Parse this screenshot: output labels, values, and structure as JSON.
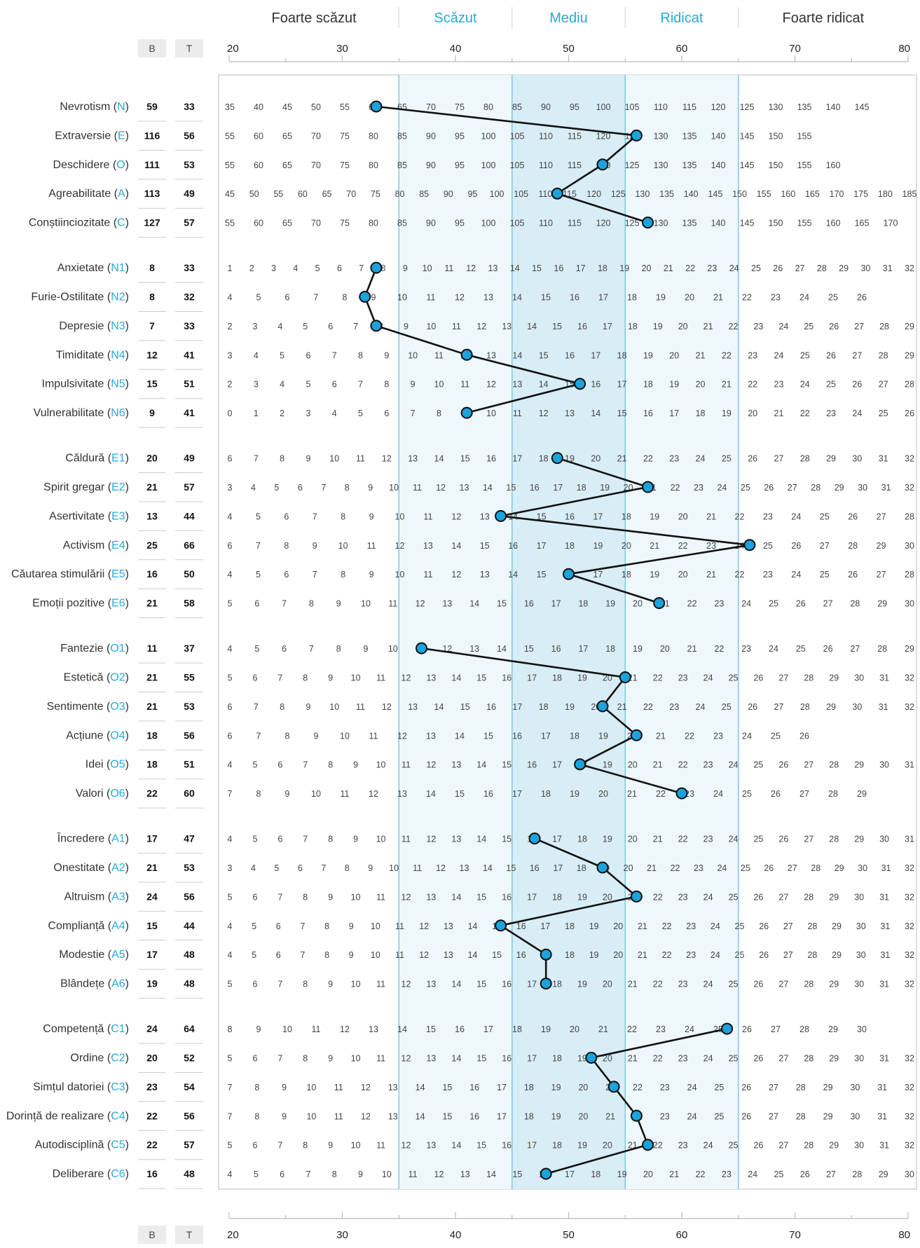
{
  "chart_data": {
    "type": "line",
    "orientation": "horizontal",
    "levels": [
      {
        "label": "Foarte scăzut",
        "range": [
          20,
          35
        ],
        "color": "#333333"
      },
      {
        "label": "Scăzut",
        "range": [
          35,
          45
        ],
        "color": "#29a8d8"
      },
      {
        "label": "Mediu",
        "range": [
          45,
          55
        ],
        "color": "#29a8d8"
      },
      {
        "label": "Ridicat",
        "range": [
          55,
          65
        ],
        "color": "#29a8d8"
      },
      {
        "label": "Foarte ridicat",
        "range": [
          65,
          80
        ],
        "color": "#333333"
      }
    ],
    "x_ticks": [
      20,
      30,
      40,
      50,
      60,
      70,
      80
    ],
    "xlim": [
      20,
      80
    ],
    "col_b_header": "B",
    "col_t_header": "T",
    "accent_color": "#29a8d8",
    "marker_color": "#1aa3dc",
    "groups": [
      [
        {
          "name": "Nevrotism",
          "code": "N",
          "b": 59,
          "t": 33,
          "scale": [
            35,
            145,
            5
          ]
        },
        {
          "name": "Extraversie",
          "code": "E",
          "b": 116,
          "t": 56,
          "scale": [
            55,
            155,
            5
          ]
        },
        {
          "name": "Deschidere",
          "code": "O",
          "b": 111,
          "t": 53,
          "scale": [
            55,
            160,
            5
          ]
        },
        {
          "name": "Agreabilitate",
          "code": "A",
          "b": 113,
          "t": 49,
          "scale": [
            45,
            185,
            5
          ]
        },
        {
          "name": "Conștiinciozitate",
          "code": "C",
          "b": 127,
          "t": 57,
          "scale": [
            55,
            170,
            5
          ]
        }
      ],
      [
        {
          "name": "Anxietate",
          "code": "N1",
          "b": 8,
          "t": 33,
          "scale": [
            1,
            32,
            1
          ]
        },
        {
          "name": "Furie-Ostilitate",
          "code": "N2",
          "b": 8,
          "t": 32,
          "scale": [
            4,
            26,
            1
          ]
        },
        {
          "name": "Depresie",
          "code": "N3",
          "b": 7,
          "t": 33,
          "scale": [
            2,
            29,
            1
          ]
        },
        {
          "name": "Timiditate",
          "code": "N4",
          "b": 12,
          "t": 41,
          "scale": [
            3,
            29,
            1
          ]
        },
        {
          "name": "Impulsivitate",
          "code": "N5",
          "b": 15,
          "t": 51,
          "scale": [
            2,
            28,
            1
          ]
        },
        {
          "name": "Vulnerabilitate",
          "code": "N6",
          "b": 9,
          "t": 41,
          "scale": [
            0,
            26,
            1
          ]
        }
      ],
      [
        {
          "name": "Căldură",
          "code": "E1",
          "b": 20,
          "t": 49,
          "scale": [
            6,
            32,
            1
          ]
        },
        {
          "name": "Spirit gregar",
          "code": "E2",
          "b": 21,
          "t": 57,
          "scale": [
            3,
            32,
            1
          ]
        },
        {
          "name": "Asertivitate",
          "code": "E3",
          "b": 13,
          "t": 44,
          "scale": [
            4,
            28,
            1
          ]
        },
        {
          "name": "Activism",
          "code": "E4",
          "b": 25,
          "t": 66,
          "scale": [
            6,
            30,
            1
          ]
        },
        {
          "name": "Căutarea stimulării",
          "code": "E5",
          "b": 16,
          "t": 50,
          "scale": [
            4,
            28,
            1
          ]
        },
        {
          "name": "Emoții pozitive",
          "code": "E6",
          "b": 21,
          "t": 58,
          "scale": [
            5,
            30,
            1
          ]
        }
      ],
      [
        {
          "name": "Fantezie",
          "code": "O1",
          "b": 11,
          "t": 37,
          "scale": [
            4,
            29,
            1
          ]
        },
        {
          "name": "Estetică",
          "code": "O2",
          "b": 21,
          "t": 55,
          "scale": [
            5,
            32,
            1
          ]
        },
        {
          "name": "Sentimente",
          "code": "O3",
          "b": 21,
          "t": 53,
          "scale": [
            6,
            32,
            1
          ]
        },
        {
          "name": "Acțiune",
          "code": "O4",
          "b": 18,
          "t": 56,
          "scale": [
            6,
            26,
            1
          ]
        },
        {
          "name": "Idei",
          "code": "O5",
          "b": 18,
          "t": 51,
          "scale": [
            4,
            31,
            1
          ]
        },
        {
          "name": "Valori",
          "code": "O6",
          "b": 22,
          "t": 60,
          "scale": [
            7,
            29,
            1
          ]
        }
      ],
      [
        {
          "name": "Încredere",
          "code": "A1",
          "b": 17,
          "t": 47,
          "scale": [
            4,
            31,
            1
          ]
        },
        {
          "name": "Onestitate",
          "code": "A2",
          "b": 21,
          "t": 53,
          "scale": [
            3,
            32,
            1
          ]
        },
        {
          "name": "Altruism",
          "code": "A3",
          "b": 24,
          "t": 56,
          "scale": [
            5,
            32,
            1
          ]
        },
        {
          "name": "Complianță",
          "code": "A4",
          "b": 15,
          "t": 44,
          "scale": [
            4,
            32,
            1
          ]
        },
        {
          "name": "Modestie",
          "code": "A5",
          "b": 17,
          "t": 48,
          "scale": [
            4,
            32,
            1
          ]
        },
        {
          "name": "Blândețe",
          "code": "A6",
          "b": 19,
          "t": 48,
          "scale": [
            5,
            32,
            1
          ]
        }
      ],
      [
        {
          "name": "Competență",
          "code": "C1",
          "b": 24,
          "t": 64,
          "scale": [
            8,
            30,
            1
          ]
        },
        {
          "name": "Ordine",
          "code": "C2",
          "b": 20,
          "t": 52,
          "scale": [
            5,
            32,
            1
          ]
        },
        {
          "name": "Simțul datoriei",
          "code": "C3",
          "b": 23,
          "t": 54,
          "scale": [
            7,
            32,
            1
          ]
        },
        {
          "name": "Dorință de realizare",
          "code": "C4",
          "b": 22,
          "t": 56,
          "scale": [
            7,
            32,
            1
          ]
        },
        {
          "name": "Autodisciplină",
          "code": "C5",
          "b": 22,
          "t": 57,
          "scale": [
            5,
            32,
            1
          ]
        },
        {
          "name": "Deliberare",
          "code": "C6",
          "b": 16,
          "t": 48,
          "scale": [
            4,
            30,
            1
          ]
        }
      ]
    ]
  }
}
